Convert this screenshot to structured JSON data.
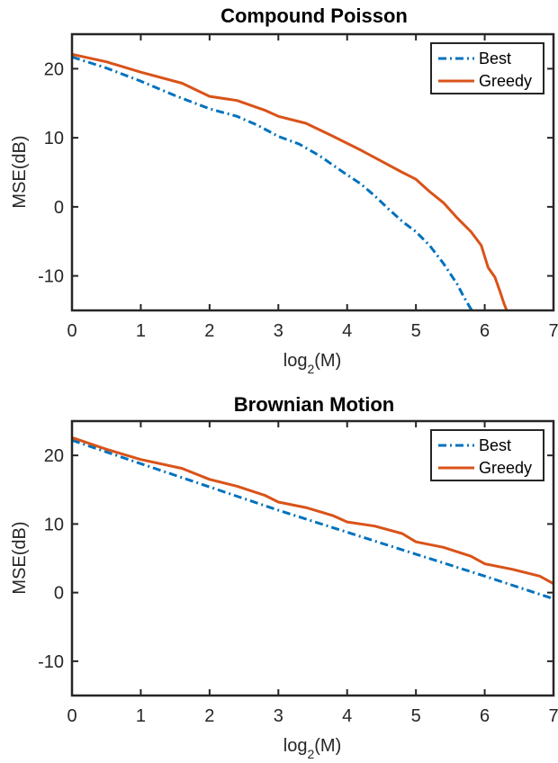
{
  "chart_data": [
    {
      "type": "line",
      "title": "Compound Poisson",
      "xlabel": "log",
      "xlabel_subscript": "2",
      "xlabel_suffix": "(M)",
      "ylabel": "MSE(dB)",
      "xlim": [
        0,
        7
      ],
      "ylim": [
        -15,
        25
      ],
      "xticks": [
        "0",
        "1",
        "2",
        "3",
        "4",
        "5",
        "6",
        "7"
      ],
      "yticks": [
        "-10",
        "0",
        "10",
        "20"
      ],
      "legend": "top-right",
      "grid": false,
      "series": [
        {
          "name": "Best",
          "color": "#0072BD",
          "style": "dash-dot",
          "x": [
            0,
            0.5,
            1,
            1.5,
            2,
            2.4,
            2.7,
            3,
            3.3,
            3.6,
            3.9,
            4.2,
            4.4,
            4.6,
            4.8,
            5.0,
            5.2,
            5.4,
            5.6,
            5.7,
            5.8,
            5.82
          ],
          "y": [
            21.7,
            20.1,
            18.2,
            16.1,
            14.2,
            13.1,
            11.8,
            10.2,
            9.1,
            7.4,
            5.3,
            3.3,
            1.6,
            -0.3,
            -2.1,
            -3.6,
            -5.6,
            -8.2,
            -11.2,
            -13.1,
            -14.8,
            -15
          ]
        },
        {
          "name": "Greedy",
          "color": "#D95319",
          "style": "solid",
          "x": [
            0,
            0.5,
            1,
            1.6,
            2,
            2.4,
            2.8,
            3,
            3.4,
            3.8,
            4.2,
            4.5,
            4.8,
            5.0,
            5.2,
            5.4,
            5.6,
            5.8,
            5.95,
            6.05,
            6.15,
            6.22,
            6.28,
            6.32
          ],
          "y": [
            22.1,
            21.0,
            19.5,
            17.9,
            16.0,
            15.4,
            14.0,
            13.1,
            12.1,
            10.2,
            8.2,
            6.6,
            5.0,
            4.0,
            2.2,
            0.6,
            -1.6,
            -3.6,
            -5.6,
            -8.8,
            -10.2,
            -12.2,
            -14.0,
            -15
          ]
        }
      ]
    },
    {
      "type": "line",
      "title": "Brownian Motion",
      "xlabel": "log",
      "xlabel_subscript": "2",
      "xlabel_suffix": "(M)",
      "ylabel": "MSE(dB)",
      "xlim": [
        0,
        7
      ],
      "ylim": [
        -15,
        25
      ],
      "xticks": [
        "0",
        "1",
        "2",
        "3",
        "4",
        "5",
        "6",
        "7"
      ],
      "yticks": [
        "-10",
        "0",
        "10",
        "20"
      ],
      "legend": "top-right",
      "grid": false,
      "series": [
        {
          "name": "Best",
          "color": "#0072BD",
          "style": "dash-dot",
          "x": [
            0,
            1,
            2,
            3,
            4,
            5,
            6,
            7
          ],
          "y": [
            22.2,
            18.8,
            15.4,
            12.0,
            8.8,
            5.6,
            2.4,
            -0.9
          ]
        },
        {
          "name": "Greedy",
          "color": "#D95319",
          "style": "solid",
          "x": [
            0,
            0.5,
            1,
            1.6,
            2,
            2.4,
            2.8,
            3,
            3.4,
            3.8,
            4,
            4.4,
            4.8,
            5,
            5.4,
            5.8,
            6,
            6.4,
            6.8,
            7
          ],
          "y": [
            22.6,
            20.9,
            19.4,
            18.1,
            16.5,
            15.5,
            14.2,
            13.2,
            12.4,
            11.2,
            10.3,
            9.7,
            8.6,
            7.4,
            6.6,
            5.3,
            4.2,
            3.4,
            2.4,
            1.3
          ]
        }
      ]
    }
  ]
}
